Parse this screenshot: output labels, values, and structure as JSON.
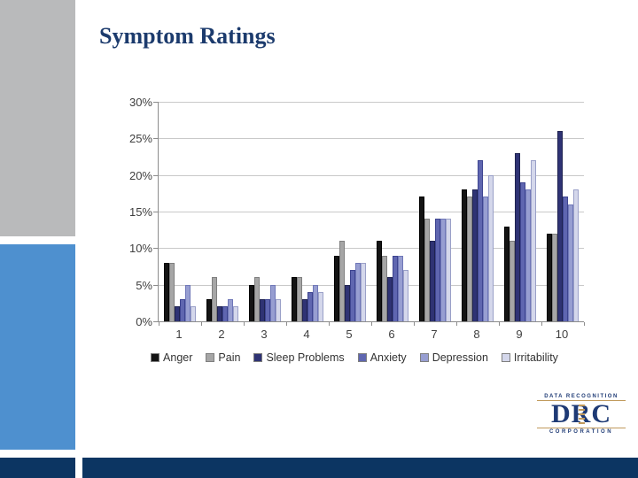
{
  "slide": {
    "title": "Symptom Ratings"
  },
  "chart_data": {
    "type": "bar",
    "title": "",
    "xlabel": "",
    "ylabel": "",
    "categories": [
      "1",
      "2",
      "3",
      "4",
      "5",
      "6",
      "7",
      "8",
      "9",
      "10"
    ],
    "series": [
      {
        "name": "Anger",
        "color": "#141414",
        "border": "#000000",
        "values": [
          8,
          3,
          5,
          6,
          9,
          11,
          17,
          18,
          13,
          12
        ]
      },
      {
        "name": "Pain",
        "color": "#a6a6a6",
        "border": "#7f7f7f",
        "values": [
          8,
          6,
          6,
          6,
          11,
          9,
          14,
          17,
          11,
          12
        ]
      },
      {
        "name": "Sleep Problems",
        "color": "#2f3374",
        "border": "#1f2350",
        "values": [
          2,
          2,
          3,
          3,
          5,
          6,
          11,
          18,
          23,
          26
        ]
      },
      {
        "name": "Anxiety",
        "color": "#5f66b0",
        "border": "#3d4490",
        "values": [
          3,
          2,
          3,
          4,
          7,
          9,
          14,
          22,
          19,
          17
        ]
      },
      {
        "name": "Depression",
        "color": "#979ed1",
        "border": "#6f77b8",
        "values": [
          5,
          3,
          5,
          5,
          8,
          9,
          14,
          17,
          18,
          16
        ]
      },
      {
        "name": "Irritability",
        "color": "#d4d7eb",
        "border": "#9aa0c8",
        "values": [
          2,
          2,
          3,
          4,
          8,
          7,
          14,
          20,
          22,
          18
        ]
      }
    ],
    "ylim": [
      0,
      30
    ],
    "ytick_step": 5,
    "ytick_labels": [
      "0%",
      "5%",
      "10%",
      "15%",
      "20%",
      "25%",
      "30%"
    ],
    "grid": true,
    "legend_position": "bottom"
  },
  "logo": {
    "top": "DATA RECOGNITION",
    "main": "DRC",
    "bottom": "CORPORATION"
  },
  "colors": {
    "title_text": "#1c3b6d",
    "sidebar_gray": "#b9babb",
    "sidebar_blue": "#4e90cf",
    "footer_navy": "#0c3562",
    "logo_navy": "#1e3a75",
    "logo_gold": "#c19a5c"
  }
}
